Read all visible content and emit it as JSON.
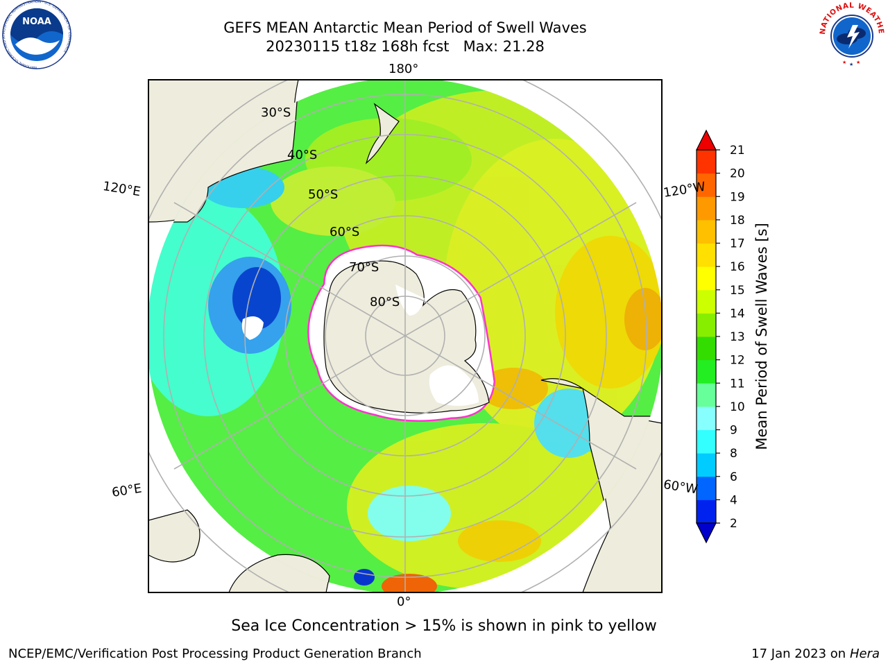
{
  "header": {
    "title_line1": "GEFS MEAN Antarctic Mean Period of Swell Waves",
    "title_line2": "20230115 t18z 168h fcst   Max: 21.28"
  },
  "logos": {
    "left": "NOAA",
    "left_ring": "NATIONAL OCEANIC AND ATMOSPHERIC ADMINISTRATION · U.S. DEPARTMENT OF COMMERCE",
    "right": "NATIONAL WEATHER SERVICE"
  },
  "map": {
    "lon_labels": {
      "top": "180°",
      "bottom": "0°",
      "left_upper": "120°E",
      "left_lower": "60°E",
      "right_upper": "120°W",
      "right_lower": "60°W"
    },
    "lat_labels": [
      "30°S",
      "40°S",
      "50°S",
      "60°S",
      "70°S",
      "80°S"
    ]
  },
  "colorbar": {
    "label": "Mean Period of Swell Waves [s]",
    "ticks": [
      "2",
      "4",
      "6",
      "8",
      "9",
      "10",
      "11",
      "12",
      "13",
      "14",
      "15",
      "16",
      "17",
      "18",
      "19",
      "20",
      "21"
    ],
    "colors": [
      "#0022ee",
      "#0066ff",
      "#00ccff",
      "#33ffff",
      "#88ffff",
      "#66ff99",
      "#22ee22",
      "#33dd00",
      "#88ee00",
      "#ccff00",
      "#ffff00",
      "#ffe000",
      "#ffc000",
      "#ff9900",
      "#ff6600",
      "#ff3300"
    ],
    "under_color": "#0000cc",
    "over_color": "#ee0000"
  },
  "footer": {
    "note": "Sea Ice Concentration > 15% is shown in pink to yellow",
    "credit": "NCEP/EMC/Verification Post Processing Product Generation Branch",
    "date": "17 Jan 2023 on ",
    "host": "Hera"
  }
}
